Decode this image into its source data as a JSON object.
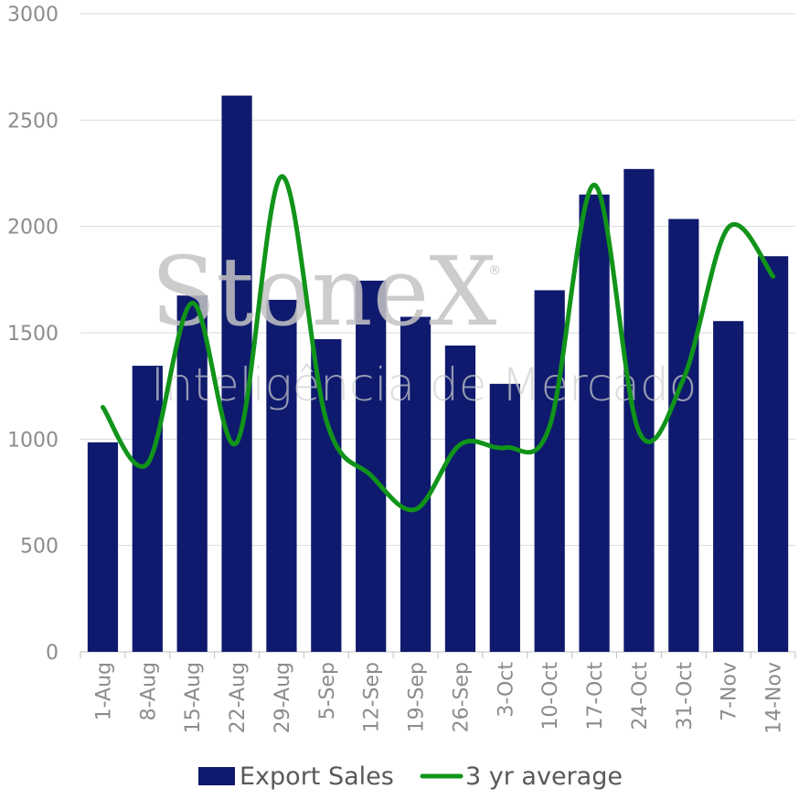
{
  "chart_data": {
    "type": "bar",
    "categories": [
      "1-Aug",
      "8-Aug",
      "15-Aug",
      "22-Aug",
      "29-Aug",
      "5-Sep",
      "12-Sep",
      "19-Sep",
      "26-Sep",
      "3-Oct",
      "10-Oct",
      "17-Oct",
      "24-Oct",
      "31-Oct",
      "7-Nov",
      "14-Nov"
    ],
    "series": [
      {
        "name": "Export Sales",
        "type": "bar",
        "color": "#0f1a6e",
        "values": [
          985,
          1345,
          1675,
          2615,
          1655,
          1470,
          1745,
          1575,
          1440,
          1260,
          1700,
          2150,
          2270,
          2035,
          1555,
          1860
        ]
      },
      {
        "name": "3 yr average",
        "type": "line",
        "smooth": true,
        "color": "#11941a",
        "values": [
          1150,
          885,
          1640,
          985,
          2235,
          1090,
          830,
          670,
          975,
          960,
          1060,
          2195,
          1035,
          1285,
          1995,
          1765
        ]
      }
    ],
    "yticks": [
      "0",
      "500",
      "1000",
      "1500",
      "2000",
      "2500",
      "3000"
    ],
    "ylim": [
      0,
      3000
    ],
    "grid": true,
    "legend": "bottom",
    "watermark": {
      "brand": "StoneX",
      "reg": "®",
      "tagline": "Inteligência de Mercado"
    }
  }
}
